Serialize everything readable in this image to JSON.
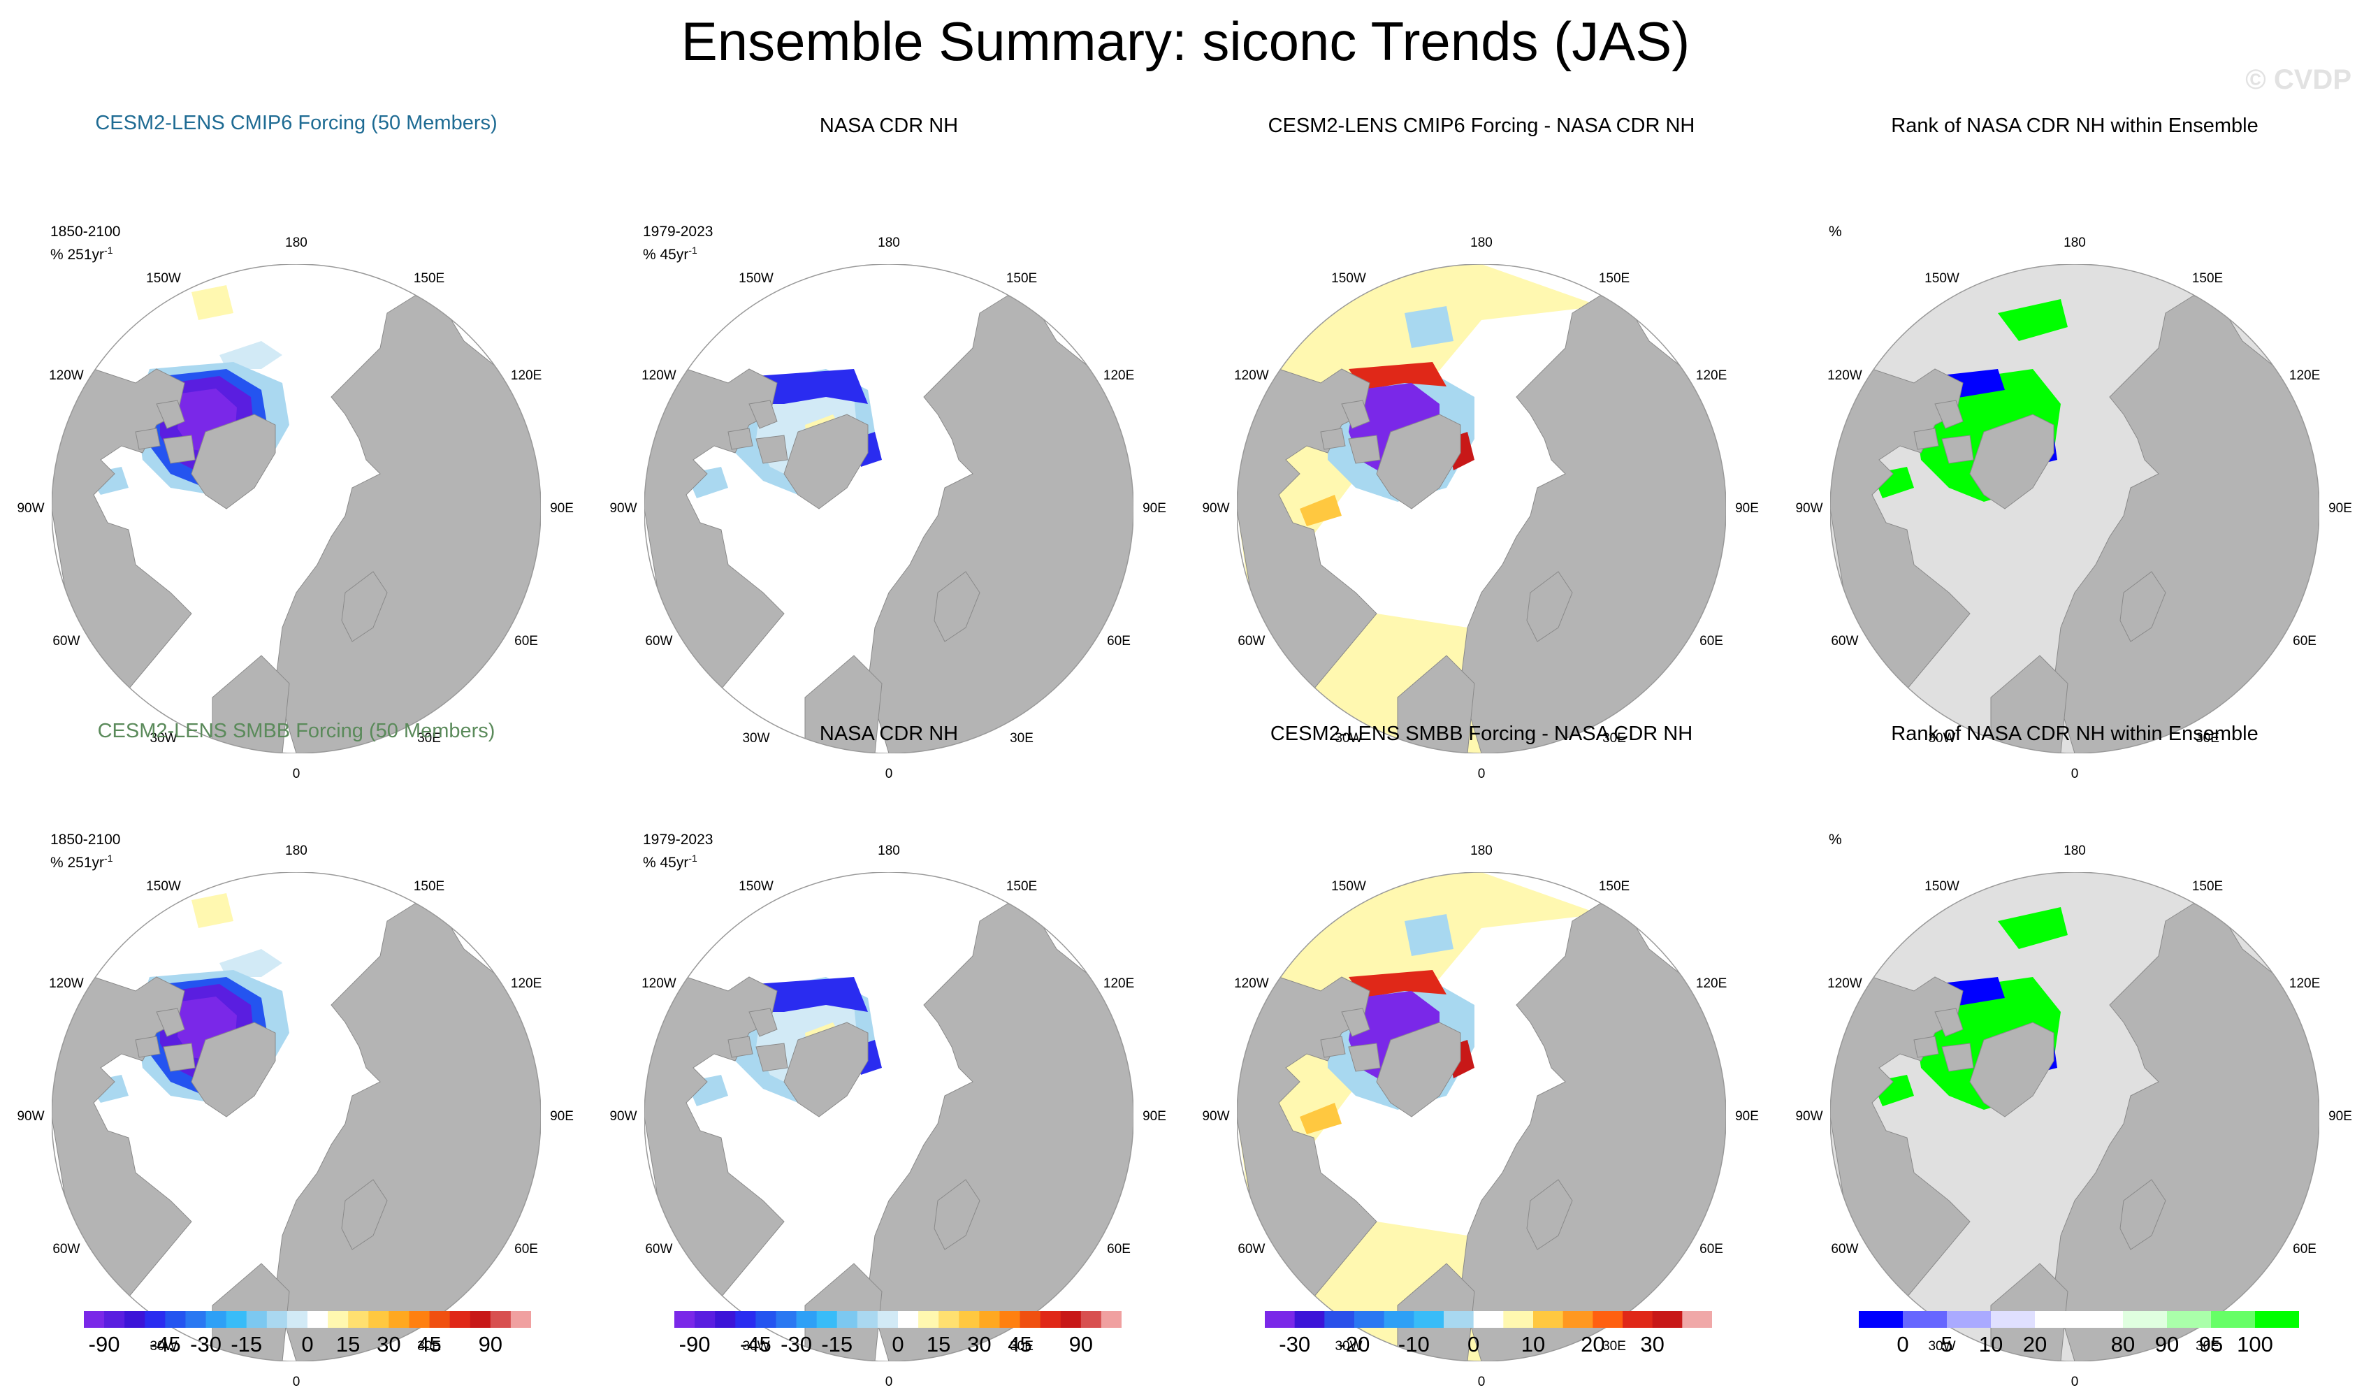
{
  "figure": {
    "title": "Ensemble Summary: siconc Trends (JAS)",
    "watermark": "© CVDP"
  },
  "lon_labels": [
    "180",
    "150E",
    "120E",
    "90E",
    "60E",
    "30E",
    "0",
    "30W",
    "60W",
    "90W",
    "120W",
    "150W"
  ],
  "panels": [
    {
      "id": "p11",
      "title": "CESM2-LENS CMIP6 Forcing (50 Members)",
      "title_style": "cmip6",
      "period": "1850-2100",
      "units": "% 251yr",
      "unit_exp": "-1",
      "kind": "model",
      "scheme": "trend"
    },
    {
      "id": "p12",
      "title": "NASA CDR NH",
      "title_style": "plain",
      "period": "1979-2023",
      "units": "% 45yr",
      "unit_exp": "-1",
      "kind": "obs",
      "scheme": "trend"
    },
    {
      "id": "p13",
      "title": "CESM2-LENS CMIP6 Forcing - NASA CDR NH",
      "title_style": "plain",
      "period": "",
      "units": "",
      "unit_exp": "",
      "kind": "diff",
      "scheme": "diff"
    },
    {
      "id": "p14",
      "title": "Rank of NASA CDR NH within Ensemble",
      "title_style": "plain",
      "period": "",
      "units": "%",
      "unit_exp": "",
      "kind": "rank",
      "scheme": "rank"
    },
    {
      "id": "p21",
      "title": "CESM2-LENS SMBB Forcing (50 Members)",
      "title_style": "smbb",
      "period": "1850-2100",
      "units": "% 251yr",
      "unit_exp": "-1",
      "kind": "model",
      "scheme": "trend"
    },
    {
      "id": "p22",
      "title": "NASA CDR NH",
      "title_style": "plain",
      "period": "1979-2023",
      "units": "% 45yr",
      "unit_exp": "-1",
      "kind": "obs",
      "scheme": "trend"
    },
    {
      "id": "p23",
      "title": "CESM2-LENS SMBB Forcing - NASA CDR NH",
      "title_style": "plain",
      "period": "",
      "units": "",
      "unit_exp": "",
      "kind": "diff",
      "scheme": "diff"
    },
    {
      "id": "p24",
      "title": "Rank of NASA CDR NH within Ensemble",
      "title_style": "plain",
      "period": "",
      "units": "%",
      "unit_exp": "",
      "kind": "rank",
      "scheme": "rank"
    }
  ],
  "colorbars": [
    {
      "id": "trend1",
      "colors": [
        "#7a28e8",
        "#5a1ee0",
        "#3c14d8",
        "#2a2cf0",
        "#2454f0",
        "#2a78f2",
        "#2ea0f6",
        "#38bcf8",
        "#7cc8f0",
        "#aad8f0",
        "#d2eaf6",
        "#ffffff",
        "#fff8b0",
        "#ffe070",
        "#ffc840",
        "#ffa820",
        "#ff8010",
        "#f05010",
        "#e02818",
        "#c81818",
        "#d85050",
        "#f0a0a0"
      ],
      "labels": [
        "-90",
        "-45",
        "-30",
        "-15",
        "0",
        "15",
        "30",
        "45",
        "90"
      ],
      "label_pos": [
        1,
        4,
        6,
        8,
        11,
        13,
        15,
        17,
        20
      ]
    },
    {
      "id": "trend2",
      "colors": [
        "#7a28e8",
        "#5a1ee0",
        "#3c14d8",
        "#2a2cf0",
        "#2454f0",
        "#2a78f2",
        "#2ea0f6",
        "#38bcf8",
        "#7cc8f0",
        "#aad8f0",
        "#d2eaf6",
        "#ffffff",
        "#fff8b0",
        "#ffe070",
        "#ffc840",
        "#ffa820",
        "#ff8010",
        "#f05010",
        "#e02818",
        "#c81818",
        "#d85050",
        "#f0a0a0"
      ],
      "labels": [
        "-90",
        "-45",
        "-30",
        "-15",
        "0",
        "15",
        "30",
        "45",
        "90"
      ],
      "label_pos": [
        1,
        4,
        6,
        8,
        11,
        13,
        15,
        17,
        20
      ]
    },
    {
      "id": "diff",
      "colors": [
        "#7a28e8",
        "#3c14d8",
        "#2a50ea",
        "#2a78f2",
        "#2ea0f6",
        "#38bcf8",
        "#a8d8f0",
        "#ffffff",
        "#fff8b0",
        "#ffc840",
        "#ff9820",
        "#ff6010",
        "#e02818",
        "#c81818",
        "#f0a8a8"
      ],
      "labels": [
        "-30",
        "-20",
        "-10",
        "0",
        "10",
        "20",
        "30"
      ],
      "label_pos": [
        1,
        3,
        5,
        7,
        9,
        11,
        13
      ]
    },
    {
      "id": "rank",
      "colors": [
        "#0000ff",
        "#6666ff",
        "#aaaaff",
        "#e0e0ff",
        "#ffffff",
        "#ffffff",
        "#e0ffe0",
        "#aaffaa",
        "#66ff66",
        "#00ff00"
      ],
      "labels": [
        "0",
        "5",
        "10",
        "20",
        "80",
        "90",
        "95",
        "100"
      ],
      "label_pos": [
        1,
        2,
        3,
        4,
        6,
        7,
        8,
        9
      ]
    }
  ]
}
